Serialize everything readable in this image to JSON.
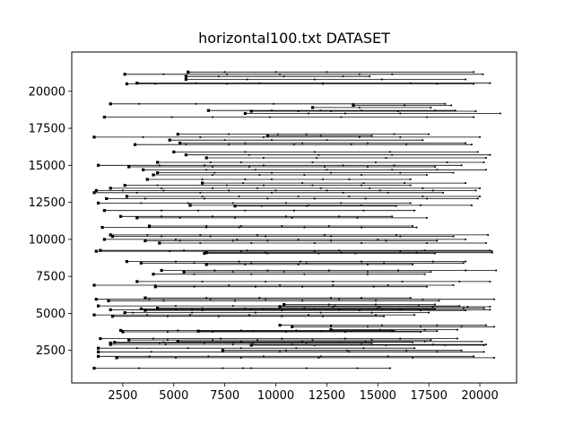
{
  "chart_data": {
    "type": "line",
    "title": "horizontal100.txt DATASET",
    "xlabel": "",
    "ylabel": "",
    "xlim": [
      0,
      21800
    ],
    "ylim": [
      300,
      22650
    ],
    "xticks": [
      2500,
      5000,
      7500,
      10000,
      12500,
      15000,
      17500,
      20000
    ],
    "xtick_labels": [
      "2500",
      "5000",
      "7500",
      "10000",
      "12500",
      "15000",
      "17500",
      "20000"
    ],
    "yticks": [
      2500,
      5000,
      7500,
      10000,
      12500,
      15000,
      17500,
      20000
    ],
    "ytick_labels": [
      "2500",
      "5000",
      "7500",
      "10000",
      "12500",
      "15000",
      "17500",
      "20000"
    ],
    "grid": false,
    "legend": "none",
    "series_color": "#000000",
    "series": [
      {
        "y": 21300,
        "x": [
          5700,
          7500,
          10000,
          12500,
          19700
        ]
      },
      {
        "y": 21150,
        "x": [
          2600,
          4500,
          7600,
          10200,
          14100,
          15700,
          20150
        ]
      },
      {
        "y": 21000,
        "x": [
          5600,
          7200,
          10400,
          13300,
          14600
        ]
      },
      {
        "y": 20800,
        "x": [
          5600,
          8600,
          11900,
          15200,
          19300
        ]
      },
      {
        "y": 20550,
        "x": [
          3200,
          6100,
          9200,
          12300,
          16600,
          20500
        ]
      },
      {
        "y": 20500,
        "x": [
          2700,
          4100,
          7600,
          12300,
          17900,
          19700
        ]
      },
      {
        "y": 19150,
        "x": [
          1900,
          3300,
          6100,
          9900,
          13800,
          18300
        ]
      },
      {
        "y": 19050,
        "x": [
          13800,
          16300,
          18600
        ]
      },
      {
        "y": 18900,
        "x": [
          11800,
          14100,
          17600
        ]
      },
      {
        "y": 18700,
        "x": [
          6700,
          9800,
          12200,
          14200,
          17800,
          18800
        ]
      },
      {
        "y": 18650,
        "x": [
          8800,
          11100,
          12700,
          16000,
          19800
        ]
      },
      {
        "y": 18500,
        "x": [
          8500,
          11600,
          13400,
          16100,
          21000
        ]
      },
      {
        "y": 18250,
        "x": [
          1600,
          4900,
          6900,
          9700,
          13200,
          17400,
          19700
        ]
      },
      {
        "y": 17100,
        "x": [
          5200,
          7700,
          10100,
          11500,
          15800,
          17500
        ]
      },
      {
        "y": 17000,
        "x": [
          9600,
          12200,
          14700
        ]
      },
      {
        "y": 16900,
        "x": [
          1100,
          3500,
          6300,
          9400,
          14100,
          16100,
          20000
        ]
      },
      {
        "y": 16700,
        "x": [
          4800,
          7500,
          9800,
          12500,
          17200
        ]
      },
      {
        "y": 16500,
        "x": [
          5300,
          8500,
          11300,
          14500,
          19300
        ]
      },
      {
        "y": 16400,
        "x": [
          3100,
          5600,
          7700,
          10900,
          13700,
          16400,
          19600
        ]
      },
      {
        "y": 15900,
        "x": [
          5000,
          8500,
          11900,
          15600,
          19900
        ]
      },
      {
        "y": 15700,
        "x": [
          5600,
          8700,
          12100,
          15700,
          20500
        ]
      },
      {
        "y": 15500,
        "x": [
          6600,
          9400,
          12000,
          15400,
          20300
        ]
      },
      {
        "y": 15200,
        "x": [
          4200,
          6800,
          8300,
          11800,
          14900,
          18400,
          20200
        ]
      },
      {
        "y": 15000,
        "x": [
          1300,
          4300,
          6500,
          9400,
          13300,
          15800,
          19100
        ]
      },
      {
        "y": 14900,
        "x": [
          2800,
          6900,
          8700,
          12400,
          14500,
          17800
        ]
      },
      {
        "y": 14700,
        "x": [
          3500,
          6600,
          9000,
          12500,
          15700,
          17900,
          20300
        ]
      },
      {
        "y": 14500,
        "x": [
          4200,
          7000,
          9800,
          12700,
          16100,
          18700
        ]
      },
      {
        "y": 14350,
        "x": [
          4000,
          6900,
          9200,
          11400,
          14200,
          17400
        ]
      },
      {
        "y": 14050,
        "x": [
          3700,
          6400,
          8500,
          9800,
          12300,
          13600,
          16600
        ]
      },
      {
        "y": 13800,
        "x": [
          6400,
          8400,
          11300,
          14300,
          16300,
          19300
        ]
      },
      {
        "y": 13650,
        "x": [
          2600,
          4200,
          7600,
          9400,
          11800,
          14200,
          16600
        ]
      },
      {
        "y": 13450,
        "x": [
          1900,
          4400,
          6900,
          9100,
          12200,
          14600,
          17200,
          20000
        ]
      },
      {
        "y": 13300,
        "x": [
          1200,
          2500,
          4500,
          7700,
          10000,
          12500,
          15100,
          17700,
          19800
        ]
      },
      {
        "y": 13150,
        "x": [
          1100,
          3200,
          6300,
          9800,
          13300,
          15500,
          18200
        ]
      },
      {
        "y": 12900,
        "x": [
          2700,
          6400,
          8200,
          11100,
          13600,
          17200,
          20000
        ]
      },
      {
        "y": 12750,
        "x": [
          1700,
          3600,
          6500,
          9600,
          11900,
          14400,
          17400,
          19900
        ]
      },
      {
        "y": 12450,
        "x": [
          1300,
          3400,
          5700,
          7900,
          10500,
          13200,
          16600
        ]
      },
      {
        "y": 12300,
        "x": [
          5800,
          8000,
          11600,
          14200,
          17100,
          19600
        ]
      },
      {
        "y": 12250,
        "x": [
          8000,
          9300,
          11500,
          15900
        ]
      },
      {
        "y": 11950,
        "x": [
          1600,
          4400,
          6200,
          8500,
          10900,
          14300,
          16800
        ]
      },
      {
        "y": 11550,
        "x": [
          2400,
          4400,
          6900,
          10500,
          13100,
          15700
        ]
      },
      {
        "y": 11450,
        "x": [
          3200,
          5300,
          8000,
          10800,
          14000,
          17400
        ]
      },
      {
        "y": 10900,
        "x": [
          3800,
          6600,
          8300,
          10300,
          12600,
          16700
        ]
      },
      {
        "y": 10800,
        "x": [
          1500,
          3800,
          6600,
          8200,
          11400,
          14200,
          16900
        ]
      },
      {
        "y": 10300,
        "x": [
          1900,
          3700,
          6300,
          9100,
          12400,
          15900,
          20400
        ]
      },
      {
        "y": 10200,
        "x": [
          2000,
          4400,
          6800,
          9500,
          12700,
          16100,
          18700
        ]
      },
      {
        "y": 10000,
        "x": [
          1600,
          5100,
          8100,
          11100,
          15000,
          19300
        ]
      },
      {
        "y": 9900,
        "x": [
          3600,
          5300,
          7900,
          9600,
          12700,
          15400,
          17900
        ]
      },
      {
        "y": 9750,
        "x": [
          4300,
          6300,
          8800,
          11900,
          14200,
          17400,
          20300
        ]
      },
      {
        "y": 9250,
        "x": [
          1400,
          5500,
          8600,
          13100,
          17300,
          20500
        ]
      },
      {
        "y": 9200,
        "x": [
          1200,
          4800,
          8300,
          11900,
          16100,
          20600
        ]
      },
      {
        "y": 9100,
        "x": [
          6600,
          9500,
          13200,
          16900,
          20600
        ]
      },
      {
        "y": 9050,
        "x": [
          6500,
          9600,
          12100,
          13900,
          17800
        ]
      },
      {
        "y": 8500,
        "x": [
          2700,
          5100,
          8200,
          11200,
          14200,
          17700,
          19300
        ]
      },
      {
        "y": 8400,
        "x": [
          3400,
          6000,
          8800,
          11500,
          15300,
          19200
        ]
      },
      {
        "y": 8300,
        "x": [
          6600,
          8500,
          11100,
          14500,
          16700
        ]
      },
      {
        "y": 7900,
        "x": [
          4400,
          7000,
          9600,
          12600,
          16000,
          19300,
          20800
        ]
      },
      {
        "y": 7800,
        "x": [
          5500,
          7900,
          10400,
          14500,
          17600
        ]
      },
      {
        "y": 7650,
        "x": [
          4000,
          6000,
          8800,
          11400,
          14500,
          17300
        ]
      },
      {
        "y": 7150,
        "x": [
          3200,
          6400,
          9500,
          12800,
          16200,
          19000,
          20500
        ]
      },
      {
        "y": 6900,
        "x": [
          1100,
          4100,
          7700,
          10200,
          12800,
          15500,
          18700
        ]
      },
      {
        "y": 6800,
        "x": [
          4100,
          6000,
          9000,
          11300,
          14800,
          17400
        ]
      },
      {
        "y": 6050,
        "x": [
          3600,
          6600,
          9200,
          12700,
          14200,
          16600
        ]
      },
      {
        "y": 5950,
        "x": [
          1200,
          3800,
          6800,
          9500,
          13100,
          17200,
          20700
        ]
      },
      {
        "y": 5850,
        "x": [
          1800,
          4500,
          8000,
          11300,
          14900,
          18000
        ]
      },
      {
        "y": 5600,
        "x": [
          10400,
          12600,
          14900,
          17800
        ]
      },
      {
        "y": 5500,
        "x": [
          1300,
          5100,
          7900,
          10200,
          12900,
          17000,
          19000
        ]
      },
      {
        "y": 5450,
        "x": [
          10200,
          12800,
          15100,
          17700,
          19400,
          20500
        ]
      },
      {
        "y": 5350,
        "x": [
          4200,
          6400,
          8500,
          11400,
          15000,
          19200,
          20200
        ]
      },
      {
        "y": 5300,
        "x": [
          3400,
          5900,
          8800,
          11900,
          15200,
          17800
        ]
      },
      {
        "y": 5250,
        "x": [
          1900,
          5100,
          9400,
          13100,
          16100,
          20500
        ]
      },
      {
        "y": 5200,
        "x": [
          3600,
          6400,
          10300,
          14100,
          17100,
          19300
        ]
      },
      {
        "y": 5050,
        "x": [
          2600,
          3000,
          5900,
          9000,
          12200,
          14700,
          17500
        ]
      },
      {
        "y": 4900,
        "x": [
          1100,
          3700,
          5800,
          8700,
          11600,
          14900,
          16800
        ]
      },
      {
        "y": 4800,
        "x": [
          2000,
          4700,
          7200,
          10300,
          12300,
          15300
        ]
      },
      {
        "y": 4200,
        "x": [
          10200,
          12700,
          15200,
          17900,
          20300
        ]
      },
      {
        "y": 4100,
        "x": [
          10800,
          12700,
          14500,
          17100,
          19100,
          20700
        ]
      },
      {
        "y": 3900,
        "x": [
          12700,
          15100,
          17300,
          18900
        ]
      },
      {
        "y": 3850,
        "x": [
          2400,
          5200,
          8300,
          11000,
          13300,
          15800
        ]
      },
      {
        "y": 3800,
        "x": [
          6200,
          8900,
          12200,
          15700,
          17900
        ]
      },
      {
        "y": 3750,
        "x": [
          2500,
          4700,
          6900,
          10500,
          13400,
          17100
        ]
      },
      {
        "y": 3300,
        "x": [
          1400,
          4000,
          7300,
          10300,
          13400,
          16100,
          18900
        ]
      },
      {
        "y": 3200,
        "x": [
          2800,
          4700,
          6900,
          9100,
          11800,
          14700,
          17600
        ]
      },
      {
        "y": 3100,
        "x": [
          5200,
          8300,
          11300,
          14400,
          17300,
          20100
        ]
      },
      {
        "y": 3050,
        "x": [
          2100,
          4500,
          7900,
          10400,
          13200,
          16700
        ]
      },
      {
        "y": 3000,
        "x": [
          1900,
          4300,
          6500,
          8900,
          11500,
          14700
        ]
      },
      {
        "y": 2900,
        "x": [
          1900,
          4600,
          7900,
          10800,
          14200,
          17700,
          20300
        ]
      },
      {
        "y": 2850,
        "x": [
          8800,
          11900,
          15400,
          18300,
          20200
        ]
      },
      {
        "y": 2650,
        "x": [
          1300,
          3200,
          5700,
          8300,
          11000,
          14300,
          16800
        ]
      },
      {
        "y": 2500,
        "x": [
          7400,
          10500,
          13500,
          16400,
          19100
        ]
      },
      {
        "y": 2400,
        "x": [
          1300,
          3900,
          7400,
          10200,
          13600,
          17900,
          20200
        ]
      },
      {
        "y": 2100,
        "x": [
          1300,
          3800,
          6700,
          9400,
          12200,
          15500,
          19700
        ]
      },
      {
        "y": 2000,
        "x": [
          2200,
          5100,
          8300,
          12100,
          16700,
          20700
        ]
      },
      {
        "y": 1300,
        "x": [
          1100,
          3300,
          7400,
          8400,
          8800,
          11500,
          14000,
          15600
        ]
      }
    ]
  }
}
